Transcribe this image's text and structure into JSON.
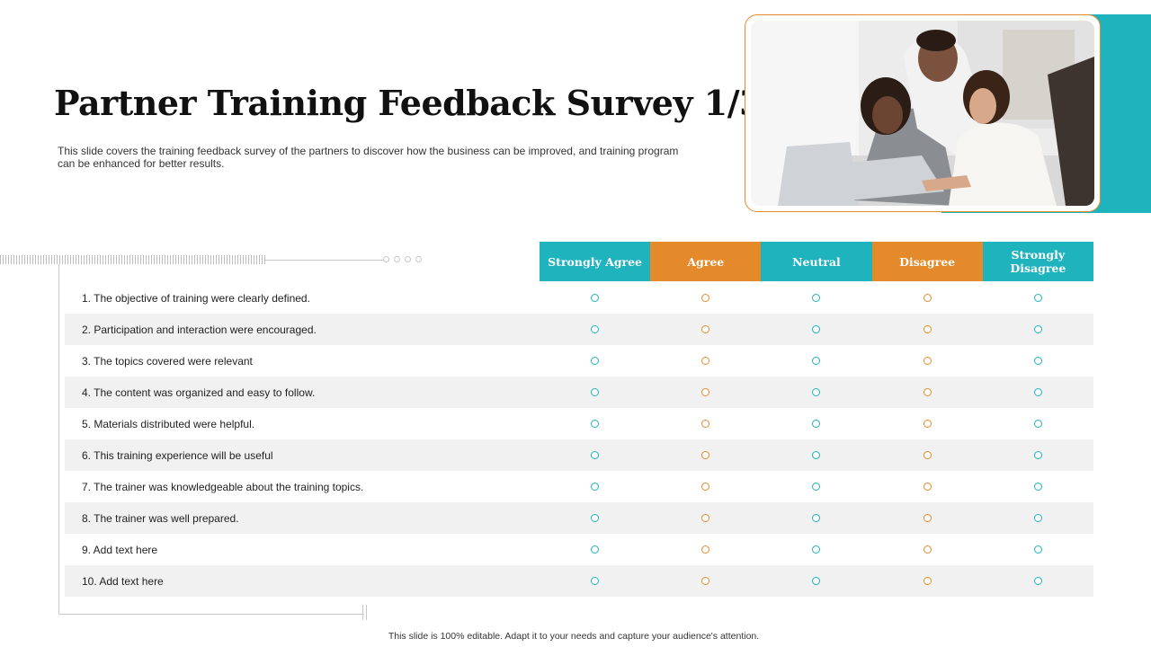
{
  "slide": {
    "title": "Partner Training Feedback Survey 1/3",
    "subtitle": "This slide covers the training feedback survey of the partners to discover how the business can be improved, and training program can be enhanced for better results.",
    "footer": "This slide is 100% editable. Adapt it to your needs and capture your audience's attention."
  },
  "colors": {
    "teal": "#1fb3bd",
    "orange": "#e58a2a",
    "row_alt": "#f1f1f1"
  },
  "photo": {
    "subject": "three-colleagues-at-laptop-image"
  },
  "survey": {
    "columns": [
      {
        "label": "Strongly Agree",
        "color": "teal"
      },
      {
        "label": "Agree",
        "color": "orange"
      },
      {
        "label": "Neutral",
        "color": "teal"
      },
      {
        "label": "Disagree",
        "color": "orange"
      },
      {
        "label": "Strongly Disagree",
        "color": "teal"
      }
    ],
    "questions": [
      "1. The objective of training were clearly defined.",
      "2. Participation and interaction were encouraged.",
      "3. The topics covered were relevant",
      "4. The content was organized and easy to follow.",
      "5. Materials distributed were helpful.",
      "6. This training experience will be useful",
      "7. The trainer was knowledgeable about the training topics.",
      "8. The trainer was well prepared.",
      "9. Add text  here",
      "10. Add text here"
    ]
  }
}
